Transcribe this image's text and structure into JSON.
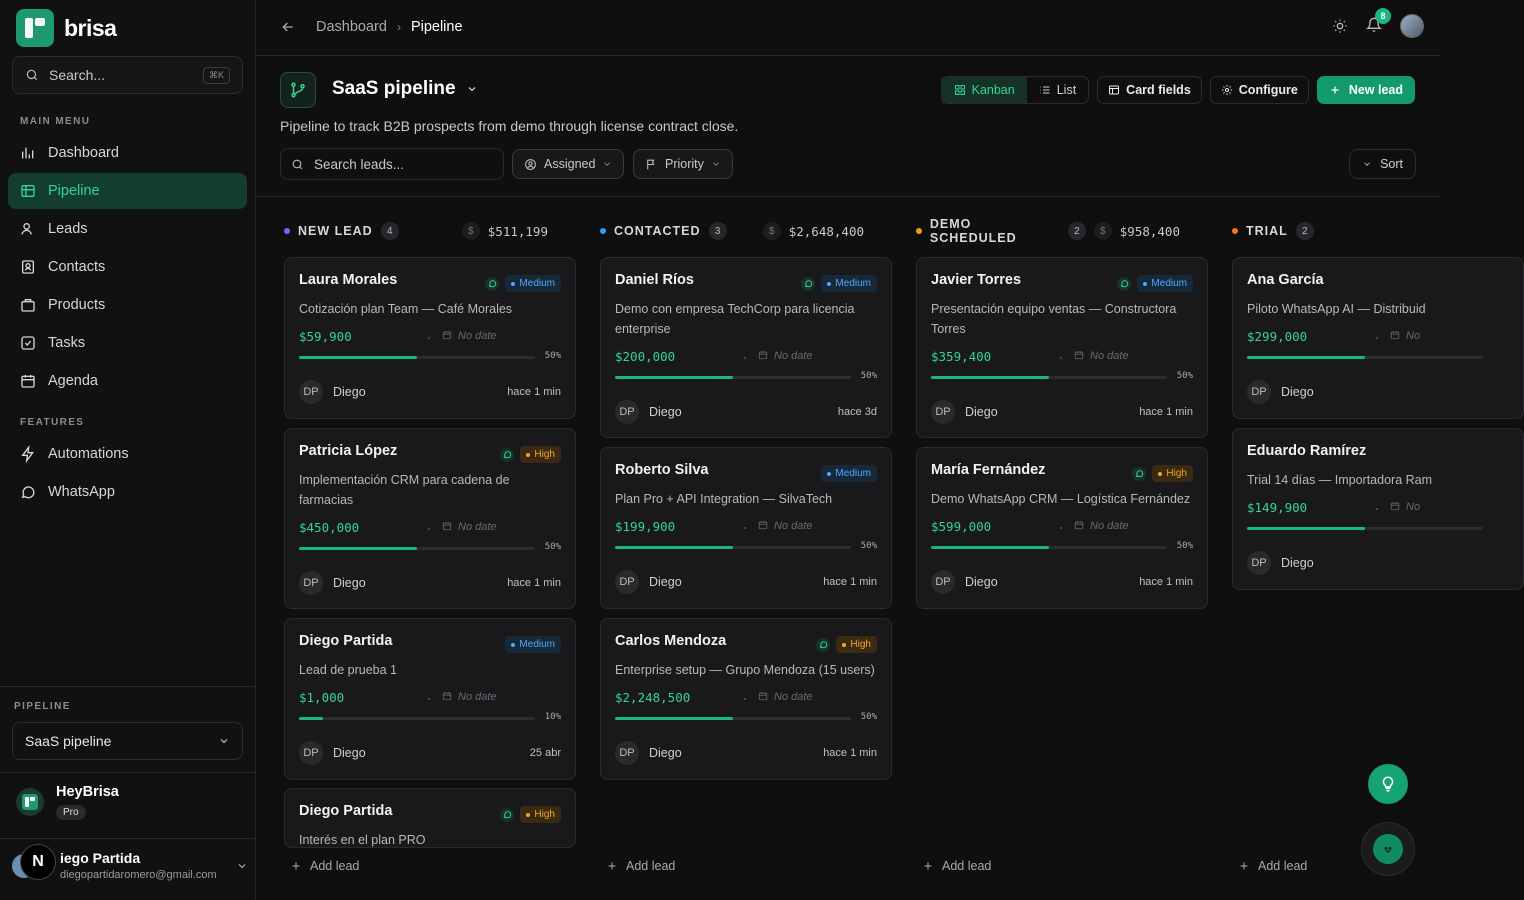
{
  "brand": {
    "name": "brisa"
  },
  "sidebar": {
    "search_label": "Search...",
    "search_kbd": "⌘K",
    "main_menu_label": "MAIN MENU",
    "items": [
      {
        "label": "Dashboard",
        "icon": "dashboard-icon"
      },
      {
        "label": "Pipeline",
        "icon": "pipeline-icon",
        "active": true
      },
      {
        "label": "Leads",
        "icon": "leads-icon"
      },
      {
        "label": "Contacts",
        "icon": "contacts-icon"
      },
      {
        "label": "Products",
        "icon": "products-icon"
      },
      {
        "label": "Tasks",
        "icon": "tasks-icon"
      },
      {
        "label": "Agenda",
        "icon": "calendar-icon"
      }
    ],
    "features_label": "FEATURES",
    "features": [
      {
        "label": "Automations",
        "icon": "lightning-icon"
      },
      {
        "label": "WhatsApp",
        "icon": "whatsapp-icon"
      }
    ],
    "pipeline_label": "PIPELINE",
    "pipeline_value": "SaaS pipeline",
    "org": {
      "name": "HeyBrisa",
      "plan": "Pro"
    },
    "user": {
      "name": "iego Partida",
      "email": "diegopartidaromero@gmail.com",
      "n_badge": "N"
    }
  },
  "topbar": {
    "breadcrumb": [
      "Dashboard",
      "Pipeline"
    ],
    "notifications": "8"
  },
  "header": {
    "title": "SaaS pipeline",
    "description": "Pipeline to track B2B prospects from demo through license contract close.",
    "view_kanban": "Kanban",
    "view_list": "List",
    "card_fields": "Card fields",
    "configure": "Configure",
    "new_lead": "New lead",
    "search_placeholder": "Search leads...",
    "filter_assigned": "Assigned",
    "filter_priority": "Priority",
    "sort": "Sort"
  },
  "colors": {
    "accent": "#19b97e",
    "medium": "#52a8ff",
    "high": "#f5a524"
  },
  "columns": [
    {
      "name": "NEW LEAD",
      "count": "4",
      "total": "$511,199",
      "dot": "#6b6bff",
      "cards": [
        {
          "title": "Laura Morales",
          "whatsapp": true,
          "priority": "Medium",
          "desc": "Cotización plan Team — Café Morales",
          "amount": "$59,900",
          "date": "No date",
          "progress": 50,
          "pct": "50%",
          "initials": "DP",
          "owner": "Diego",
          "ago": "hace 1 min"
        },
        {
          "title": "Patricia López",
          "whatsapp": true,
          "priority": "High",
          "desc": "Implementación CRM para cadena de farmacias",
          "amount": "$450,000",
          "date": "No date",
          "progress": 50,
          "pct": "50%",
          "initials": "DP",
          "owner": "Diego",
          "ago": "hace 1 min"
        },
        {
          "title": "Diego Partida",
          "whatsapp": false,
          "priority": "Medium",
          "desc": "Lead de prueba 1",
          "amount": "$1,000",
          "date": "No date",
          "progress": 10,
          "pct": "10%",
          "initials": "DP",
          "owner": "Diego",
          "ago": "25 abr"
        },
        {
          "title": "Diego Partida",
          "whatsapp": true,
          "priority": "High",
          "desc": "Interés en el plan PRO",
          "amount": "",
          "date": "",
          "progress": 0,
          "pct": "",
          "initials": "",
          "owner": "",
          "ago": ""
        }
      ]
    },
    {
      "name": "CONTACTED",
      "count": "3",
      "total": "$2,648,400",
      "dot": "#2a9dff",
      "cards": [
        {
          "title": "Daniel Ríos",
          "whatsapp": true,
          "priority": "Medium",
          "desc": "Demo con empresa TechCorp para licencia enterprise",
          "amount": "$200,000",
          "date": "No date",
          "progress": 50,
          "pct": "50%",
          "initials": "DP",
          "owner": "Diego",
          "ago": "hace 3d"
        },
        {
          "title": "Roberto Silva",
          "whatsapp": false,
          "priority": "Medium",
          "desc": "Plan Pro + API Integration — SilvaTech",
          "amount": "$199,900",
          "date": "No date",
          "progress": 50,
          "pct": "50%",
          "initials": "DP",
          "owner": "Diego",
          "ago": "hace 1 min"
        },
        {
          "title": "Carlos Mendoza",
          "whatsapp": true,
          "priority": "High",
          "desc": "Enterprise setup — Grupo Mendoza (15 users)",
          "amount": "$2,248,500",
          "date": "No date",
          "progress": 50,
          "pct": "50%",
          "initials": "DP",
          "owner": "Diego",
          "ago": "hace 1 min"
        }
      ]
    },
    {
      "name": "DEMO SCHEDULED",
      "count": "2",
      "total": "$958,400",
      "dot": "#f59e0b",
      "cards": [
        {
          "title": "Javier Torres",
          "whatsapp": true,
          "priority": "Medium",
          "desc": "Presentación equipo ventas — Constructora Torres",
          "amount": "$359,400",
          "date": "No date",
          "progress": 50,
          "pct": "50%",
          "initials": "DP",
          "owner": "Diego",
          "ago": "hace 1 min"
        },
        {
          "title": "María Fernández",
          "whatsapp": true,
          "priority": "High",
          "desc": "Demo WhatsApp CRM — Logística Fernández",
          "amount": "$599,000",
          "date": "No date",
          "progress": 50,
          "pct": "50%",
          "initials": "DP",
          "owner": "Diego",
          "ago": "hace 1 min"
        }
      ]
    },
    {
      "name": "TRIAL",
      "count": "2",
      "total": "",
      "dot": "#f97316",
      "cards": [
        {
          "title": "Ana García",
          "whatsapp": false,
          "priority": "",
          "desc": "Piloto WhatsApp AI — Distribuid",
          "amount": "$299,000",
          "date": "No",
          "progress": 50,
          "pct": "",
          "initials": "DP",
          "owner": "Diego",
          "ago": ""
        },
        {
          "title": "Eduardo Ramírez",
          "whatsapp": false,
          "priority": "",
          "desc": "Trial 14 días — Importadora Ram",
          "amount": "$149,900",
          "date": "No",
          "progress": 50,
          "pct": "",
          "initials": "DP",
          "owner": "Diego",
          "ago": ""
        }
      ]
    }
  ],
  "add_lead": "Add lead"
}
